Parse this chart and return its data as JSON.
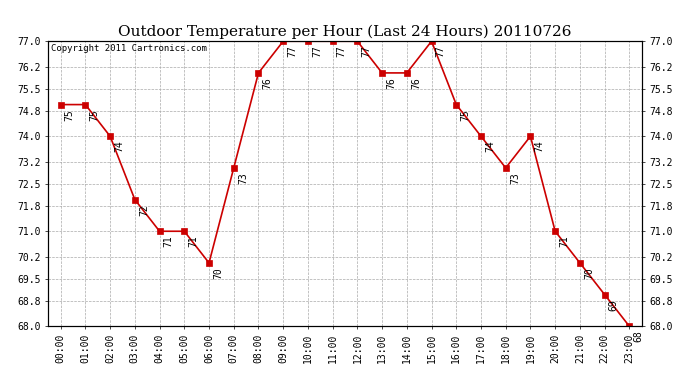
{
  "title": "Outdoor Temperature per Hour (Last 24 Hours) 20110726",
  "copyright": "Copyright 2011 Cartronics.com",
  "hours": [
    "00:00",
    "01:00",
    "02:00",
    "03:00",
    "04:00",
    "05:00",
    "06:00",
    "07:00",
    "08:00",
    "09:00",
    "10:00",
    "11:00",
    "12:00",
    "13:00",
    "14:00",
    "15:00",
    "16:00",
    "17:00",
    "18:00",
    "19:00",
    "20:00",
    "21:00",
    "22:00",
    "23:00"
  ],
  "temps": [
    75,
    75,
    74,
    72,
    71,
    71,
    70,
    73,
    76,
    77,
    77,
    77,
    77,
    76,
    76,
    77,
    75,
    74,
    73,
    74,
    71,
    70,
    69,
    68
  ],
  "ylim_min": 68.0,
  "ylim_max": 77.0,
  "yticks": [
    68.0,
    68.8,
    69.5,
    70.2,
    71.0,
    71.8,
    72.5,
    73.2,
    74.0,
    74.8,
    75.5,
    76.2,
    77.0
  ],
  "ytick_labels": [
    "68.0",
    "68.8",
    "69.5",
    "70.2",
    "71.0",
    "71.8",
    "72.5",
    "73.2",
    "74.0",
    "74.8",
    "75.5",
    "76.2",
    "77.0"
  ],
  "line_color": "#cc0000",
  "marker": "s",
  "marker_size": 4,
  "background_color": "#ffffff",
  "grid_color": "#aaaaaa",
  "title_fontsize": 11,
  "label_fontsize": 7,
  "annotation_fontsize": 7,
  "copyright_fontsize": 6.5
}
